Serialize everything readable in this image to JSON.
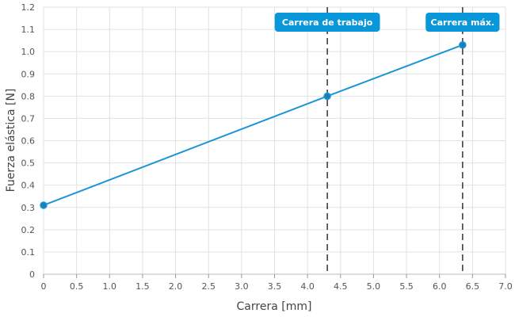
{
  "chart_data": {
    "type": "line",
    "title": "",
    "xlabel": "Carrera [mm]",
    "ylabel": "Fuerza elástica [N]",
    "xlim": [
      0,
      7.0
    ],
    "ylim": [
      0,
      1.2
    ],
    "xticks": [
      "0",
      "0.5",
      "1.0",
      "1.5",
      "2.0",
      "2.5",
      "3.0",
      "3.5",
      "4.0",
      "4.5",
      "5.0",
      "5.5",
      "6.0",
      "6.5",
      "7.0"
    ],
    "yticks": [
      "0",
      "0.1",
      "0.2",
      "0.3",
      "0.4",
      "0.5",
      "0.6",
      "0.7",
      "0.8",
      "0.9",
      "1.0",
      "1.1",
      "1.2"
    ],
    "grid": true,
    "series": [
      {
        "x": [
          0,
          4.3,
          6.35
        ],
        "y": [
          0.31,
          0.8,
          1.03
        ],
        "color": "#1a96d6"
      }
    ],
    "vlines": [
      {
        "x": 4.3,
        "label": "Carrera de trabajo"
      },
      {
        "x": 6.35,
        "label": "Carrera máx."
      }
    ],
    "colors": {
      "line": "#1a96d6",
      "marker": "#1a7fb5",
      "annotation_bg": "#0a97d9",
      "vline": "#333333",
      "grid": "#e2e2e2"
    }
  }
}
